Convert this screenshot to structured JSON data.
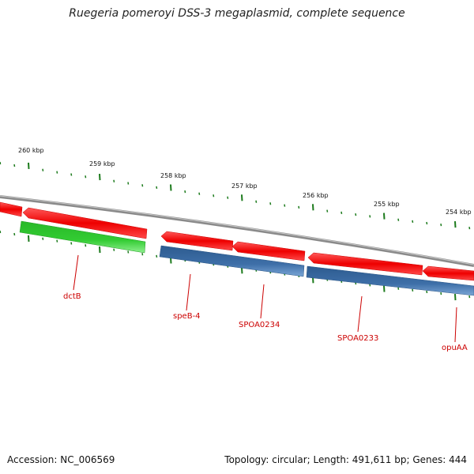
{
  "title": "Ruegeria pomeroyi DSS-3 megaplasmid, complete sequence",
  "footer": {
    "accession": "Accession: NC_006569",
    "summary": "Topology: circular; Length: 491,611 bp; Genes: 444"
  },
  "colors": {
    "backbone": "#888888",
    "forward_gene": "#ee0000",
    "reverse_gene": "#3e6fa8",
    "other_gene": "#33cc33",
    "tick": "#1b7a1b",
    "label": "#cc0000"
  },
  "scale_labels": [
    "260 kbp",
    "259 kbp",
    "258 kbp",
    "257 kbp",
    "256 kbp",
    "255 kbp",
    "254 kbp"
  ],
  "features": [
    {
      "id": "fwd-1",
      "strand": "forward",
      "color": "red"
    },
    {
      "id": "fwd-2",
      "strand": "forward",
      "color": "red"
    },
    {
      "id": "fwd-3",
      "strand": "forward",
      "color": "red"
    },
    {
      "id": "fwd-4",
      "strand": "forward",
      "color": "red"
    },
    {
      "id": "fwd-5",
      "strand": "forward",
      "color": "red"
    },
    {
      "id": "fwd-6",
      "strand": "forward",
      "color": "red"
    },
    {
      "id": "dctB-bar",
      "strand": "reverse",
      "color": "green"
    },
    {
      "id": "speB-4-bar",
      "strand": "reverse",
      "color": "blue"
    },
    {
      "id": "SPOA0233-bar",
      "strand": "reverse",
      "color": "blue"
    }
  ],
  "gene_labels": [
    "dctB",
    "speB-4",
    "SPOA0234",
    "SPOA0233",
    "opuAA"
  ]
}
